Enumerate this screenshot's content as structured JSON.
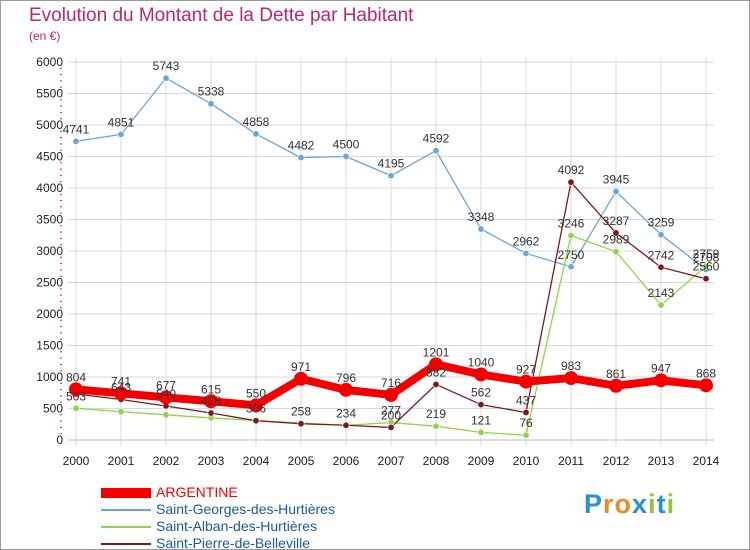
{
  "header": {
    "title": "Evolution du Montant de la Dette par Habitant",
    "unit": "(en €)"
  },
  "colors": {
    "title": "#c0266d",
    "grid": "#d9d9d9",
    "axis_tick": "#c0266d"
  },
  "logo": {
    "text": "Proxiti",
    "letters": [
      {
        "ch": "P",
        "color": "#2b8fd6"
      },
      {
        "ch": "r",
        "color": "#f08a24"
      },
      {
        "ch": "o",
        "color": "#f08a24"
      },
      {
        "ch": "x",
        "color": "#2b8fd6"
      },
      {
        "ch": "i",
        "color": "#8cc63e"
      },
      {
        "ch": "t",
        "color": "#2b8fd6"
      },
      {
        "ch": "i",
        "color": "#8cc63e"
      }
    ]
  },
  "chart_data": {
    "type": "line",
    "x": [
      "2000",
      "2001",
      "2002",
      "2003",
      "2004",
      "2005",
      "2006",
      "2007",
      "2008",
      "2009",
      "2010",
      "2011",
      "2012",
      "2013",
      "2014"
    ],
    "ylim": [
      0,
      6000
    ],
    "yticks": [
      0,
      500,
      1000,
      1500,
      2000,
      2500,
      3000,
      3500,
      4000,
      4500,
      5000,
      5500,
      6000
    ],
    "grid": true,
    "legend_position": "bottom-left",
    "series": [
      {
        "name": "ARGENTINE",
        "color": "#f50000",
        "style": "thick",
        "values": [
          804,
          741,
          677,
          615,
          550,
          971,
          796,
          716,
          1201,
          1040,
          927,
          983,
          861,
          947,
          868
        ],
        "labels": [
          "804",
          "741",
          "677",
          "615",
          "550",
          "971",
          "796",
          "716",
          "1201",
          "1040",
          "927",
          "983",
          "861",
          "947",
          "868"
        ]
      },
      {
        "name": "Saint-Georges-des-Hurtières",
        "color": "#6aa6d8",
        "style": "thin",
        "values": [
          4741,
          4851,
          5743,
          5338,
          4858,
          4482,
          4500,
          4195,
          4592,
          3348,
          2962,
          2750,
          3945,
          3259,
          2708
        ],
        "labels": [
          "4741",
          "4851",
          "5743",
          "5338",
          "4858",
          "4482",
          "4500",
          "4195",
          "4592",
          "3348",
          "2962",
          "2750",
          "3945",
          "3259",
          "2708"
        ]
      },
      {
        "name": "Saint-Alban-des-Hurtières",
        "color": "#8fd44c",
        "style": "thin",
        "values": [
          503,
          450,
          400,
          350,
          310,
          270,
          234,
          277,
          219,
          121,
          76,
          3246,
          2989,
          2143,
          2759
        ],
        "labels": [
          "503",
          "",
          "",
          "",
          "",
          "",
          "",
          "277",
          "219",
          "121",
          "76",
          "3246",
          "2989",
          "2143",
          "2759"
        ]
      },
      {
        "name": "Saint-Pierre-de-Belleville",
        "color": "#7a1a1a",
        "style": "thin",
        "values": [
          730,
          643,
          540,
          428,
          306,
          258,
          234,
          200,
          882,
          562,
          437,
          4092,
          3287,
          2742,
          2560
        ],
        "labels": [
          "",
          "643",
          "540",
          "428",
          "306",
          "258",
          "234",
          "200",
          "882",
          "562",
          "437",
          "4092",
          "3287",
          "2742",
          "2560"
        ]
      }
    ]
  }
}
